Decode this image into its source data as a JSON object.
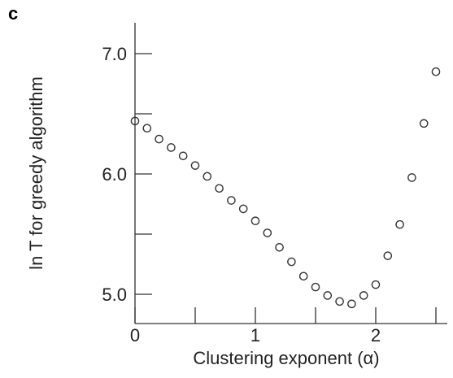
{
  "panel_label": "c",
  "chart_data": {
    "type": "scatter",
    "title": "",
    "xlabel": "Clustering exponent (α)",
    "ylabel": "ln T for  greedy algorithm",
    "xlim": [
      0,
      2.6
    ],
    "ylim": [
      4.9,
      7.3
    ],
    "x_ticks": [
      0,
      1,
      2
    ],
    "x_tick_labels": [
      "0",
      "1",
      "2"
    ],
    "x_minor_ticks": [
      0.5,
      1.5,
      2.5
    ],
    "y_ticks": [
      5.0,
      6.0,
      7.0
    ],
    "y_tick_labels": [
      "5.0",
      "6.0",
      "7.0"
    ],
    "y_minor_ticks": [
      5.5,
      6.5
    ],
    "grid": false,
    "legend": "none",
    "marker": "open-circle",
    "marker_color": "#333333",
    "axis_color": "#333333",
    "series": [
      {
        "x": [
          0.0,
          0.1,
          0.2,
          0.3,
          0.4,
          0.5,
          0.6,
          0.7,
          0.8,
          0.9,
          1.0,
          1.1,
          1.2,
          1.3,
          1.4,
          1.5,
          1.6,
          1.7,
          1.8,
          1.9,
          2.0,
          2.1,
          2.2,
          2.3,
          2.4,
          2.5
        ],
        "y": [
          6.44,
          6.38,
          6.29,
          6.22,
          6.15,
          6.07,
          5.98,
          5.88,
          5.78,
          5.71,
          5.61,
          5.51,
          5.39,
          5.27,
          5.15,
          5.06,
          4.99,
          4.94,
          4.92,
          4.99,
          5.08,
          5.32,
          5.58,
          5.97,
          6.42,
          6.85
        ]
      }
    ]
  }
}
